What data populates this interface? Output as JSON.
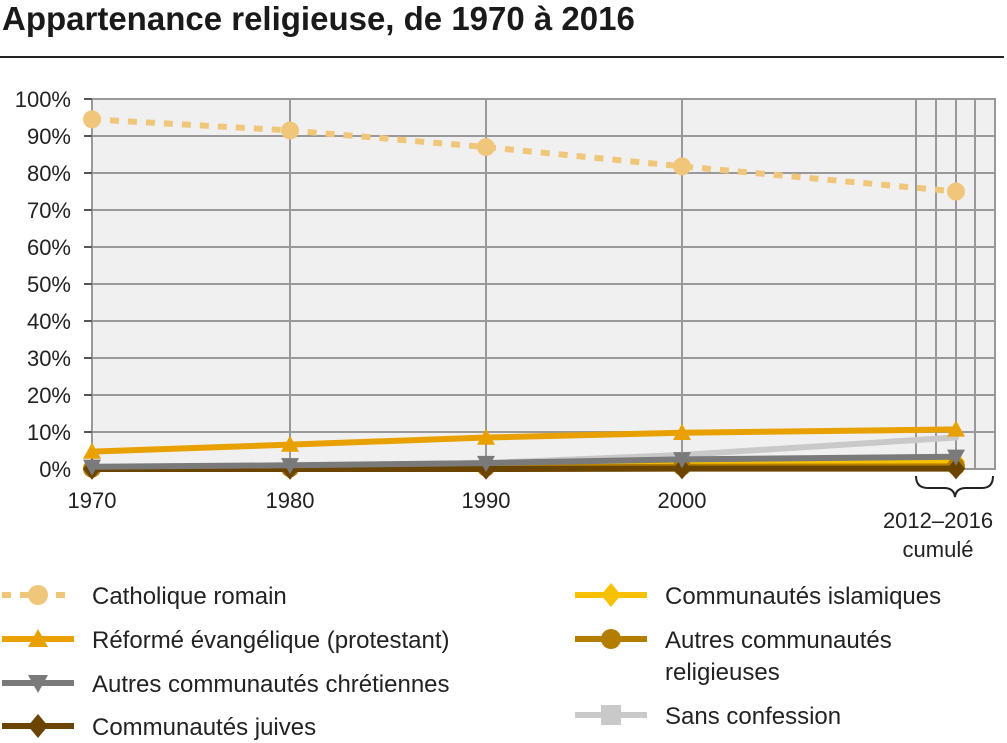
{
  "title": "Appartenance religieuse, de 1970 à 2016",
  "chart_data": {
    "type": "line",
    "title": "Appartenance religieuse, de 1970 à 2016",
    "xlabel": "",
    "ylabel": "",
    "x_ticks": [
      "1970",
      "1980",
      "1990",
      "2000"
    ],
    "x_bracket_label": [
      "2012–2016",
      "cumulé"
    ],
    "y_ticks": [
      "0%",
      "10%",
      "20%",
      "30%",
      "40%",
      "50%",
      "60%",
      "70%",
      "80%",
      "90%",
      "100%"
    ],
    "ylim": [
      0,
      100
    ],
    "x": [
      "1970",
      "1980",
      "1990",
      "2000",
      "2012–2016"
    ],
    "grid": true,
    "legend_position": "bottom",
    "series": [
      {
        "name": "Catholique romain",
        "color": "#f0c67a",
        "marker": "circle",
        "dash": true,
        "values": [
          94.5,
          91.5,
          87.0,
          81.8,
          75.0
        ]
      },
      {
        "name": "Réformé évangélique (protestant)",
        "color": "#e8a100",
        "marker": "triangle-up",
        "dash": false,
        "values": [
          4.7,
          6.6,
          8.5,
          9.8,
          10.7
        ]
      },
      {
        "name": "Autres communautés chrétiennes",
        "color": "#7a7a7a",
        "marker": "triangle-down",
        "dash": false,
        "values": [
          0.6,
          1.0,
          1.6,
          2.6,
          3.3
        ]
      },
      {
        "name": "Communautés juives",
        "color": "#6b4400",
        "marker": "diamond",
        "dash": false,
        "values": [
          0.0,
          0.0,
          0.0,
          0.1,
          0.1
        ]
      },
      {
        "name": "Communautés islamiques",
        "color": "#f7c100",
        "marker": "diamond",
        "dash": false,
        "values": [
          0.0,
          0.0,
          0.3,
          1.1,
          2.0
        ]
      },
      {
        "name": "Autres communautés religieuses",
        "color": "#b37d00",
        "marker": "circle",
        "dash": false,
        "values": [
          0.1,
          0.2,
          0.4,
          0.6,
          0.7
        ]
      },
      {
        "name": "Sans confession",
        "color": "#c9c9c9",
        "marker": "square",
        "dash": false,
        "values": [
          0.4,
          0.8,
          1.6,
          3.8,
          8.5
        ]
      }
    ],
    "legend": [
      {
        "label": [
          "Catholique romain"
        ]
      },
      {
        "label": [
          "Réformé évangélique (protestant)"
        ]
      },
      {
        "label": [
          "Autres communautés chrétiennes"
        ]
      },
      {
        "label": [
          "Communautés juives"
        ]
      },
      {
        "label": [
          "Communautés islamiques"
        ]
      },
      {
        "label": [
          "Autres communautés",
          "religieuses"
        ]
      },
      {
        "label": [
          "Sans confession"
        ]
      }
    ]
  }
}
